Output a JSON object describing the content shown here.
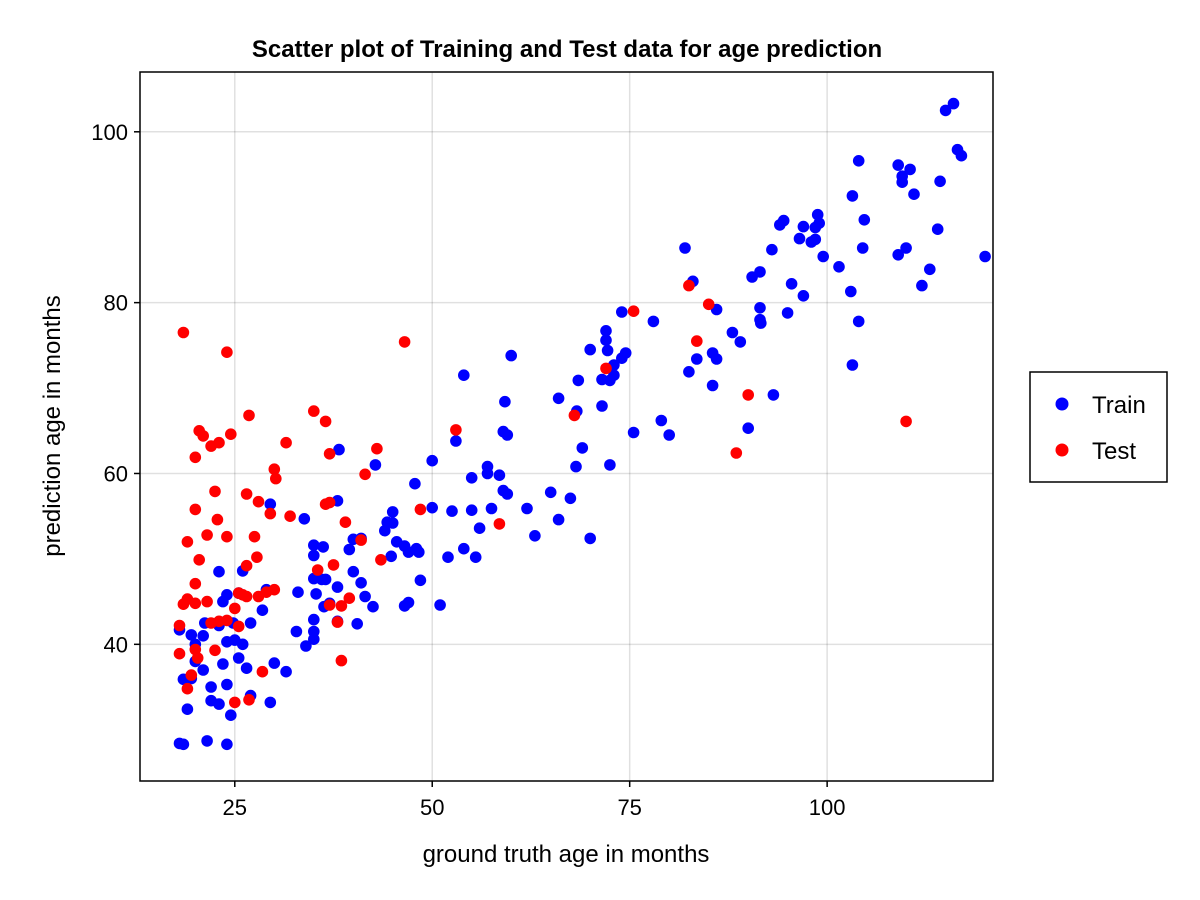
{
  "chart_data": {
    "type": "scatter",
    "title": "Scatter plot of Training and Test data for age prediction",
    "xlabel": "ground truth age in months",
    "ylabel": "prediction age in months",
    "xlim": [
      13,
      121
    ],
    "ylim": [
      24,
      107
    ],
    "xticks": [
      25,
      50,
      75,
      100
    ],
    "yticks": [
      40,
      60,
      80,
      100
    ],
    "grid": true,
    "legend_position": "right",
    "series": [
      {
        "name": "Train",
        "color": "#0000ff",
        "points": [
          [
            18,
            28.4
          ],
          [
            18.5,
            28.3
          ],
          [
            21.5,
            28.7
          ],
          [
            24,
            28.3
          ],
          [
            19,
            32.4
          ],
          [
            22,
            33.4
          ],
          [
            24.5,
            31.7
          ],
          [
            23,
            33
          ],
          [
            24,
            35.3
          ],
          [
            22,
            35
          ],
          [
            18.5,
            35.9
          ],
          [
            19.5,
            36
          ],
          [
            21,
            37
          ],
          [
            20,
            38
          ],
          [
            26.5,
            37.2
          ],
          [
            27,
            34
          ],
          [
            29.5,
            33.2
          ],
          [
            25.5,
            38.4
          ],
          [
            23.5,
            37.7
          ],
          [
            24,
            40.3
          ],
          [
            25,
            40.5
          ],
          [
            26,
            40
          ],
          [
            23,
            42.2
          ],
          [
            24.8,
            42.5
          ],
          [
            27,
            42.5
          ],
          [
            18,
            41.7
          ],
          [
            19.5,
            41.1
          ],
          [
            21,
            41
          ],
          [
            20,
            40
          ],
          [
            21.2,
            42.5
          ],
          [
            23.5,
            45
          ],
          [
            24,
            45.8
          ],
          [
            25.5,
            46
          ],
          [
            26,
            48.6
          ],
          [
            23,
            48.5
          ],
          [
            29,
            46.4
          ],
          [
            28.5,
            44
          ],
          [
            29.5,
            56.4
          ],
          [
            30,
            37.8
          ],
          [
            31.5,
            36.8
          ],
          [
            32.8,
            41.5
          ],
          [
            34,
            39.8
          ],
          [
            35,
            40.6
          ],
          [
            35,
            41.5
          ],
          [
            35,
            42.9
          ],
          [
            35.3,
            45.9
          ],
          [
            33,
            46.1
          ],
          [
            35,
            47.7
          ],
          [
            36,
            47.6
          ],
          [
            36.3,
            44.4
          ],
          [
            37,
            44.8
          ],
          [
            36.5,
            47.6
          ],
          [
            38,
            46.7
          ],
          [
            33.8,
            54.7
          ],
          [
            35,
            51.6
          ],
          [
            36.2,
            51.4
          ],
          [
            35,
            50.4
          ],
          [
            38,
            56.8
          ],
          [
            38.2,
            62.8
          ],
          [
            38,
            42.7
          ],
          [
            40,
            48.5
          ],
          [
            40.5,
            42.4
          ],
          [
            41,
            47.2
          ],
          [
            41.5,
            45.6
          ],
          [
            42.5,
            44.4
          ],
          [
            39.5,
            51.1
          ],
          [
            40,
            52.3
          ],
          [
            41,
            52.4
          ],
          [
            42.8,
            61
          ],
          [
            44,
            53.3
          ],
          [
            44.3,
            54.3
          ],
          [
            45,
            54.2
          ],
          [
            45,
            55.5
          ],
          [
            45.5,
            52
          ],
          [
            46.5,
            51.5
          ],
          [
            47,
            50.8
          ],
          [
            48,
            51.2
          ],
          [
            48.3,
            50.8
          ],
          [
            44.8,
            50.3
          ],
          [
            46.5,
            44.5
          ],
          [
            47,
            44.9
          ],
          [
            48.5,
            47.5
          ],
          [
            47.8,
            58.8
          ],
          [
            50,
            61.5
          ],
          [
            50,
            56
          ],
          [
            51,
            44.6
          ],
          [
            52,
            50.2
          ],
          [
            52.5,
            55.6
          ],
          [
            53,
            63.8
          ],
          [
            54,
            71.5
          ],
          [
            54,
            51.2
          ],
          [
            55,
            55.7
          ],
          [
            55,
            59.5
          ],
          [
            55.5,
            50.2
          ],
          [
            56,
            53.6
          ],
          [
            57,
            60.8
          ],
          [
            57,
            60
          ],
          [
            57.5,
            55.9
          ],
          [
            58.5,
            59.8
          ],
          [
            59,
            58
          ],
          [
            59.5,
            57.6
          ],
          [
            59,
            64.9
          ],
          [
            59.5,
            64.5
          ],
          [
            59.2,
            68.4
          ],
          [
            60,
            73.8
          ],
          [
            62,
            55.9
          ],
          [
            63,
            52.7
          ],
          [
            65,
            57.8
          ],
          [
            66,
            54.6
          ],
          [
            66,
            68.8
          ],
          [
            67.5,
            57.1
          ],
          [
            68.3,
            67.3
          ],
          [
            68.2,
            60.8
          ],
          [
            68.5,
            70.9
          ],
          [
            69,
            63
          ],
          [
            70,
            74.5
          ],
          [
            70,
            52.4
          ],
          [
            71.5,
            67.9
          ],
          [
            72,
            76.7
          ],
          [
            72,
            75.6
          ],
          [
            72.2,
            74.4
          ],
          [
            71.5,
            71
          ],
          [
            72.5,
            70.9
          ],
          [
            72.5,
            61
          ],
          [
            73,
            71.5
          ],
          [
            73,
            72.7
          ],
          [
            74,
            73.5
          ],
          [
            74,
            78.9
          ],
          [
            74.5,
            74.1
          ],
          [
            75.5,
            64.8
          ],
          [
            78,
            77.8
          ],
          [
            79,
            66.2
          ],
          [
            80,
            64.5
          ],
          [
            82,
            86.4
          ],
          [
            82.5,
            71.9
          ],
          [
            83,
            82.5
          ],
          [
            83.5,
            73.4
          ],
          [
            85.5,
            74.1
          ],
          [
            85.5,
            70.3
          ],
          [
            86,
            73.4
          ],
          [
            86,
            79.2
          ],
          [
            88,
            76.5
          ],
          [
            89,
            75.4
          ],
          [
            90,
            65.3
          ],
          [
            90.5,
            83
          ],
          [
            91.5,
            78
          ],
          [
            91.5,
            79.4
          ],
          [
            91.5,
            83.6
          ],
          [
            91.6,
            77.6
          ],
          [
            93,
            86.2
          ],
          [
            93.2,
            69.2
          ],
          [
            94,
            89.1
          ],
          [
            94.5,
            89.6
          ],
          [
            95,
            78.8
          ],
          [
            95.5,
            82.2
          ],
          [
            96.5,
            87.5
          ],
          [
            97,
            80.8
          ],
          [
            97,
            88.9
          ],
          [
            98,
            87.1
          ],
          [
            98.5,
            87.4
          ],
          [
            98.5,
            88.8
          ],
          [
            99,
            89.3
          ],
          [
            98.8,
            90.3
          ],
          [
            99.5,
            85.4
          ],
          [
            101.5,
            84.2
          ],
          [
            103,
            81.3
          ],
          [
            103.2,
            72.7
          ],
          [
            103.2,
            92.5
          ],
          [
            104,
            77.8
          ],
          [
            104,
            96.6
          ],
          [
            104.5,
            86.4
          ],
          [
            104.7,
            89.7
          ],
          [
            109,
            96.1
          ],
          [
            109,
            85.6
          ],
          [
            109.5,
            94.1
          ],
          [
            109.5,
            94.8
          ],
          [
            110,
            86.4
          ],
          [
            110.5,
            95.6
          ],
          [
            111,
            92.7
          ],
          [
            112,
            82
          ],
          [
            113,
            83.9
          ],
          [
            114,
            88.6
          ],
          [
            114.3,
            94.2
          ],
          [
            115,
            102.5
          ],
          [
            116,
            103.3
          ],
          [
            116.5,
            97.9
          ],
          [
            117,
            97.2
          ],
          [
            120,
            85.4
          ]
        ]
      },
      {
        "name": "Test",
        "color": "#ff0000",
        "points": [
          [
            18.5,
            76.5
          ],
          [
            24,
            74.2
          ],
          [
            20.5,
            65
          ],
          [
            21,
            64.4
          ],
          [
            22,
            63.2
          ],
          [
            23,
            63.6
          ],
          [
            24.5,
            64.6
          ],
          [
            20,
            61.9
          ],
          [
            26.8,
            66.8
          ],
          [
            22.5,
            57.9
          ],
          [
            26.5,
            57.6
          ],
          [
            28,
            56.7
          ],
          [
            22.8,
            54.6
          ],
          [
            20,
            55.8
          ],
          [
            21.5,
            52.8
          ],
          [
            24,
            52.6
          ],
          [
            27.5,
            52.6
          ],
          [
            19,
            52
          ],
          [
            20.5,
            49.9
          ],
          [
            26.5,
            49.2
          ],
          [
            27.8,
            50.2
          ],
          [
            20,
            47.1
          ],
          [
            18,
            42.2
          ],
          [
            18.5,
            44.7
          ],
          [
            19,
            45.3
          ],
          [
            20,
            44.8
          ],
          [
            21.5,
            45
          ],
          [
            25,
            44.2
          ],
          [
            25.5,
            46
          ],
          [
            26,
            45.8
          ],
          [
            26.5,
            45.6
          ],
          [
            28,
            45.6
          ],
          [
            22,
            42.5
          ],
          [
            23,
            42.7
          ],
          [
            24,
            42.8
          ],
          [
            25.5,
            42.1
          ],
          [
            29,
            46.1
          ],
          [
            30,
            46.4
          ],
          [
            18,
            38.9
          ],
          [
            19.5,
            36.4
          ],
          [
            19,
            34.8
          ],
          [
            20,
            39.4
          ],
          [
            20.3,
            38.4
          ],
          [
            22.5,
            39.3
          ],
          [
            25,
            33.2
          ],
          [
            26.8,
            33.5
          ],
          [
            28.5,
            36.8
          ],
          [
            29.5,
            55.3
          ],
          [
            30,
            60.5
          ],
          [
            30.2,
            59.4
          ],
          [
            32,
            55
          ],
          [
            31.5,
            63.6
          ],
          [
            35,
            67.3
          ],
          [
            36.5,
            66.1
          ],
          [
            37,
            62.3
          ],
          [
            36.5,
            56.4
          ],
          [
            37,
            56.6
          ],
          [
            35.5,
            48.7
          ],
          [
            37.5,
            49.3
          ],
          [
            37,
            44.6
          ],
          [
            38,
            42.6
          ],
          [
            38.5,
            38.1
          ],
          [
            38.5,
            44.5
          ],
          [
            39,
            54.3
          ],
          [
            39.5,
            45.4
          ],
          [
            41,
            52.2
          ],
          [
            41.5,
            59.9
          ],
          [
            43,
            62.9
          ],
          [
            43.5,
            49.9
          ],
          [
            46.5,
            75.4
          ],
          [
            48.5,
            55.8
          ],
          [
            53,
            65.1
          ],
          [
            58.5,
            54.1
          ],
          [
            68,
            66.8
          ],
          [
            72,
            72.3
          ],
          [
            75.5,
            79
          ],
          [
            82.5,
            82
          ],
          [
            83.5,
            75.5
          ],
          [
            85,
            79.8
          ],
          [
            88.5,
            62.4
          ],
          [
            90,
            69.2
          ],
          [
            110,
            66.1
          ]
        ]
      }
    ]
  }
}
